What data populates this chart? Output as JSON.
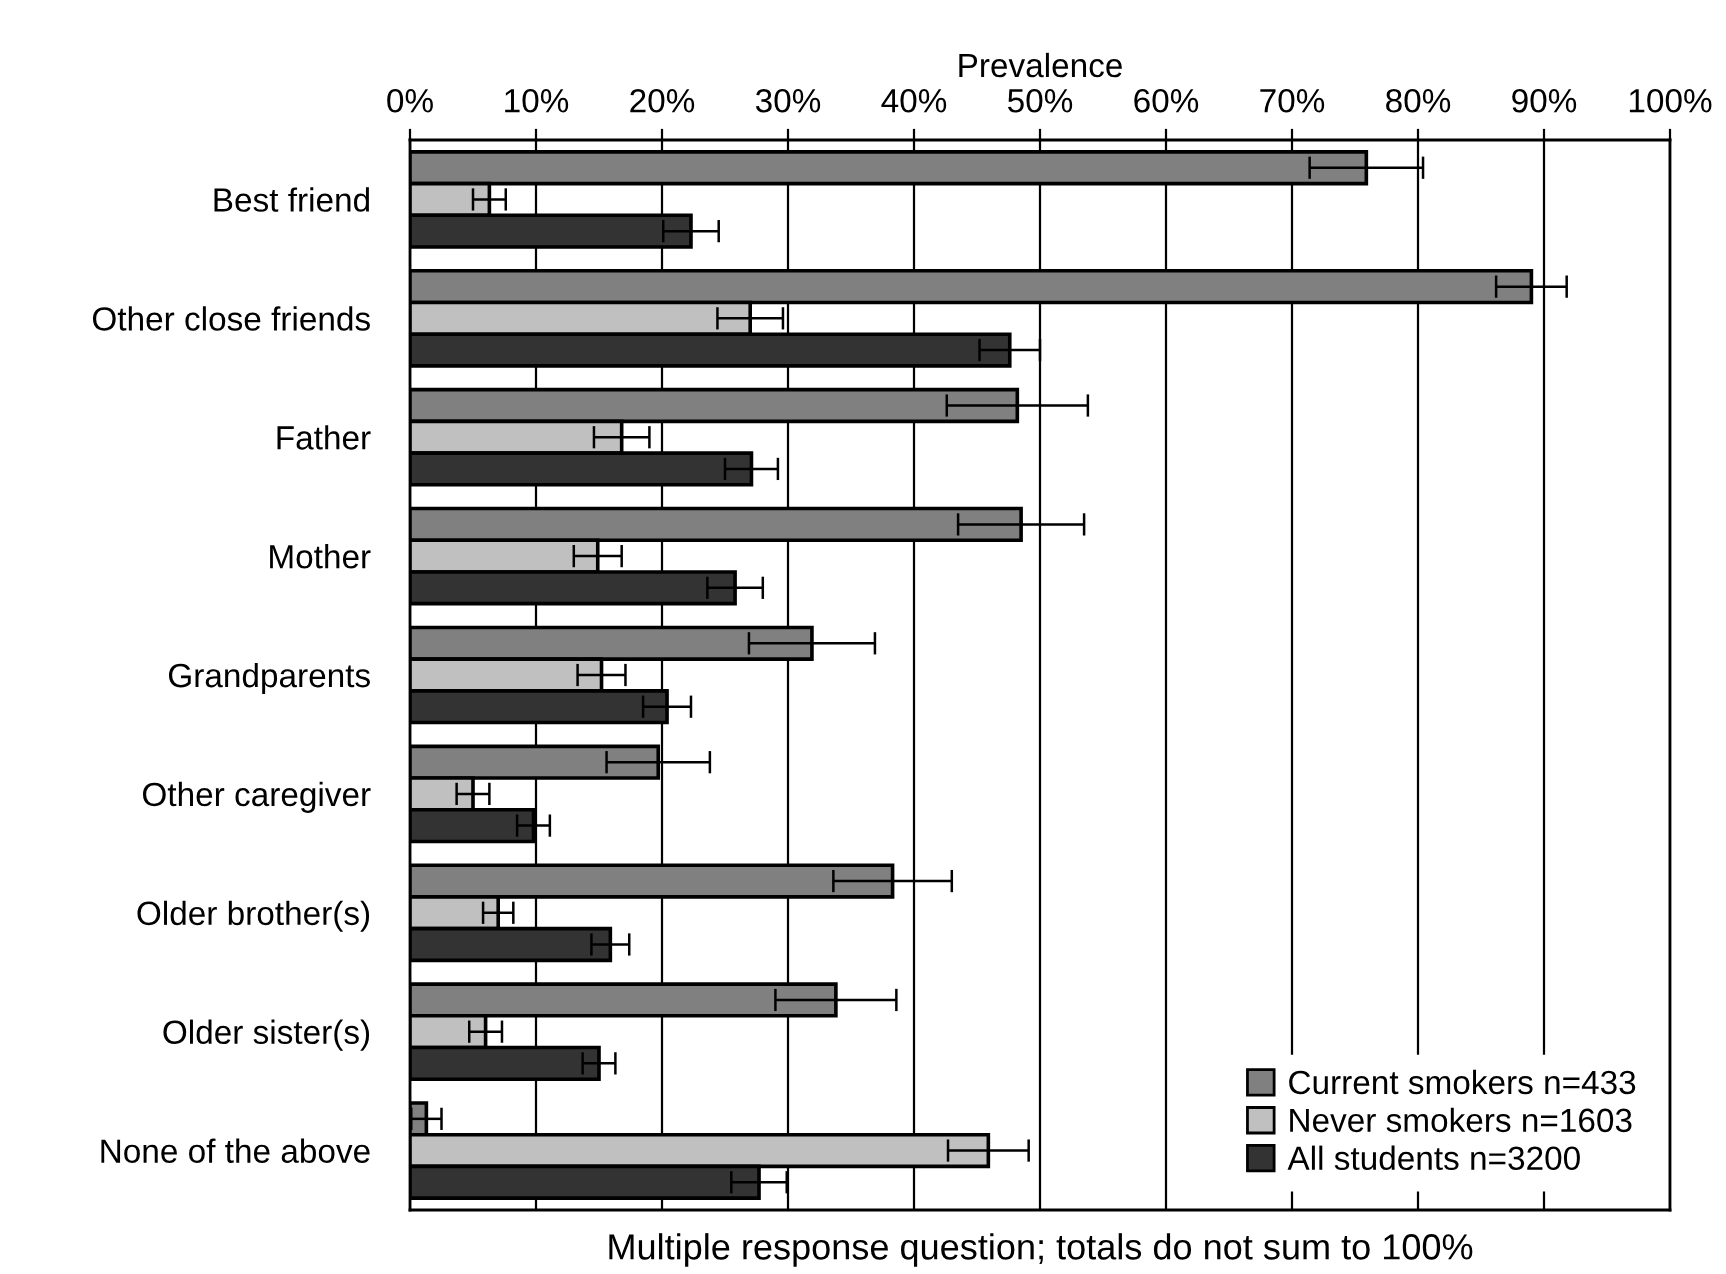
{
  "chart_data": {
    "type": "bar",
    "orientation": "horizontal",
    "xlabel": "Prevalence",
    "categories": [
      "Best friend",
      "Other close friends",
      "Father",
      "Mother",
      "Grandparents",
      "Other caregiver",
      "Older brother(s)",
      "Older sister(s)",
      "None of the above"
    ],
    "series": [
      {
        "name": "Current smokers n=433",
        "color": "#808080",
        "values": [
          75.9,
          89.0,
          48.2,
          48.5,
          31.9,
          19.7,
          38.3,
          33.8,
          1.3
        ],
        "errors": [
          4.5,
          2.8,
          5.6,
          5.0,
          5.0,
          4.1,
          4.7,
          4.8,
          1.2
        ]
      },
      {
        "name": "Never smokers n=1603",
        "color": "#c0c0c0",
        "values": [
          6.3,
          27.0,
          16.8,
          14.9,
          15.2,
          5.0,
          7.0,
          6.0,
          45.9
        ],
        "errors": [
          1.3,
          2.6,
          2.2,
          1.9,
          1.9,
          1.3,
          1.2,
          1.3,
          3.2
        ]
      },
      {
        "name": "All students n=3200",
        "color": "#333333",
        "values": [
          22.3,
          47.6,
          27.1,
          25.8,
          20.4,
          9.8,
          15.9,
          15.0,
          27.7
        ],
        "errors": [
          2.2,
          2.4,
          2.1,
          2.2,
          1.9,
          1.3,
          1.5,
          1.3,
          2.2
        ]
      }
    ],
    "xlim": [
      0,
      100
    ],
    "xticks": [
      {
        "value": 0,
        "label": "0%"
      },
      {
        "value": 10,
        "label": "10%"
      },
      {
        "value": 20,
        "label": "20%"
      },
      {
        "value": 30,
        "label": "30%"
      },
      {
        "value": 40,
        "label": "40%"
      },
      {
        "value": 50,
        "label": "50%"
      },
      {
        "value": 60,
        "label": "60%"
      },
      {
        "value": 70,
        "label": "70%"
      },
      {
        "value": 80,
        "label": "80%"
      },
      {
        "value": 90,
        "label": "90%"
      },
      {
        "value": 100,
        "label": "100%"
      }
    ],
    "grid": "x",
    "legend": "bottom right",
    "annotations": [
      "Multiple response question; totals do not sum to 100%"
    ]
  }
}
